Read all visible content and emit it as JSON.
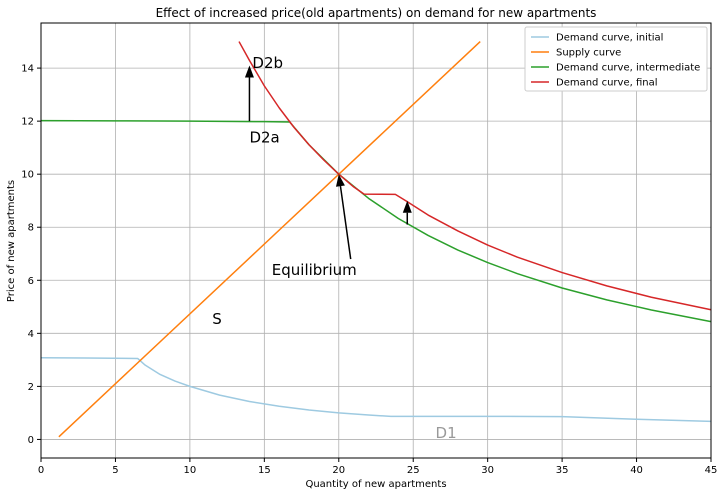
{
  "chart_data": {
    "type": "line",
    "title": "Effect of increased price(old apartments) on demand for new apartments",
    "xlabel": "Quantity of new apartments",
    "ylabel": "Price of new apartments",
    "xlim": [
      0,
      45
    ],
    "ylim": [
      -0.7,
      15.7
    ],
    "grid": true,
    "legend_position": "top-right",
    "x_ticks": [
      0,
      5,
      10,
      15,
      20,
      25,
      30,
      35,
      40,
      45
    ],
    "y_ticks": [
      0,
      2,
      4,
      6,
      8,
      10,
      12,
      14
    ],
    "series": [
      {
        "name": "Demand curve, initial",
        "color": "#9ecae1",
        "points": [
          [
            0,
            3.08
          ],
          [
            3,
            3.07
          ],
          [
            6.5,
            3.05
          ],
          [
            7,
            2.8
          ],
          [
            8,
            2.45
          ],
          [
            9,
            2.2
          ],
          [
            10,
            2.0
          ],
          [
            12,
            1.67
          ],
          [
            14,
            1.43
          ],
          [
            16,
            1.25
          ],
          [
            18,
            1.11
          ],
          [
            20,
            1.0
          ],
          [
            22,
            0.92
          ],
          [
            23.5,
            0.87
          ],
          [
            25,
            0.87
          ],
          [
            30,
            0.87
          ],
          [
            35,
            0.86
          ],
          [
            40,
            0.76
          ],
          [
            45,
            0.68
          ]
        ]
      },
      {
        "name": "Supply curve",
        "color": "#ff7f0e",
        "points": [
          [
            1.2,
            0.1
          ],
          [
            29.5,
            15.0
          ]
        ]
      },
      {
        "name": "Demand curve, intermediate",
        "color": "#2ca02c",
        "points": [
          [
            0,
            12.02
          ],
          [
            5,
            12.01
          ],
          [
            10,
            12.0
          ],
          [
            15,
            11.98
          ],
          [
            16.7,
            11.97
          ],
          [
            18,
            11.11
          ],
          [
            20,
            10.0
          ],
          [
            22,
            9.09
          ],
          [
            24,
            8.33
          ],
          [
            26,
            7.69
          ],
          [
            28,
            7.14
          ],
          [
            30,
            6.67
          ],
          [
            32,
            6.25
          ],
          [
            35,
            5.71
          ],
          [
            38,
            5.26
          ],
          [
            41,
            4.88
          ],
          [
            45,
            4.44
          ]
        ]
      },
      {
        "name": "Demand curve, final",
        "color": "#d62728",
        "points": [
          [
            13.3,
            15.0
          ],
          [
            14,
            14.29
          ],
          [
            15,
            13.33
          ],
          [
            16,
            12.5
          ],
          [
            17,
            11.76
          ],
          [
            18,
            11.11
          ],
          [
            19,
            10.53
          ],
          [
            20,
            10.0
          ],
          [
            21,
            9.52
          ],
          [
            21.7,
            9.25
          ],
          [
            23.8,
            9.24
          ],
          [
            24.5,
            9.0
          ],
          [
            26,
            8.46
          ],
          [
            28,
            7.86
          ],
          [
            30,
            7.33
          ],
          [
            32,
            6.87
          ],
          [
            35,
            6.29
          ],
          [
            38,
            5.79
          ],
          [
            41,
            5.36
          ],
          [
            45,
            4.89
          ]
        ]
      }
    ],
    "annotations": [
      {
        "text": "D2b",
        "x": 14.2,
        "y": 14.0,
        "color": "#000000"
      },
      {
        "text": "D2a",
        "x": 14.0,
        "y": 11.2,
        "color": "#000000"
      },
      {
        "text": "Equilibrium",
        "x": 15.5,
        "y": 6.2,
        "color": "#000000"
      },
      {
        "text": "S",
        "x": 11.5,
        "y": 4.35,
        "color": "#000000"
      },
      {
        "text": "D1",
        "x": 26.5,
        "y": 0.05,
        "color": "#999999"
      }
    ],
    "arrows": [
      {
        "name": "d2-shift-arrow",
        "from": [
          14.0,
          12.0
        ],
        "to": [
          14.0,
          14.1
        ]
      },
      {
        "name": "equilibrium-arrow",
        "from": [
          20.8,
          6.8
        ],
        "to": [
          20.0,
          10.0
        ]
      },
      {
        "name": "final-shift-arrow",
        "from": [
          24.6,
          8.1
        ],
        "to": [
          24.6,
          9.0
        ]
      }
    ]
  }
}
